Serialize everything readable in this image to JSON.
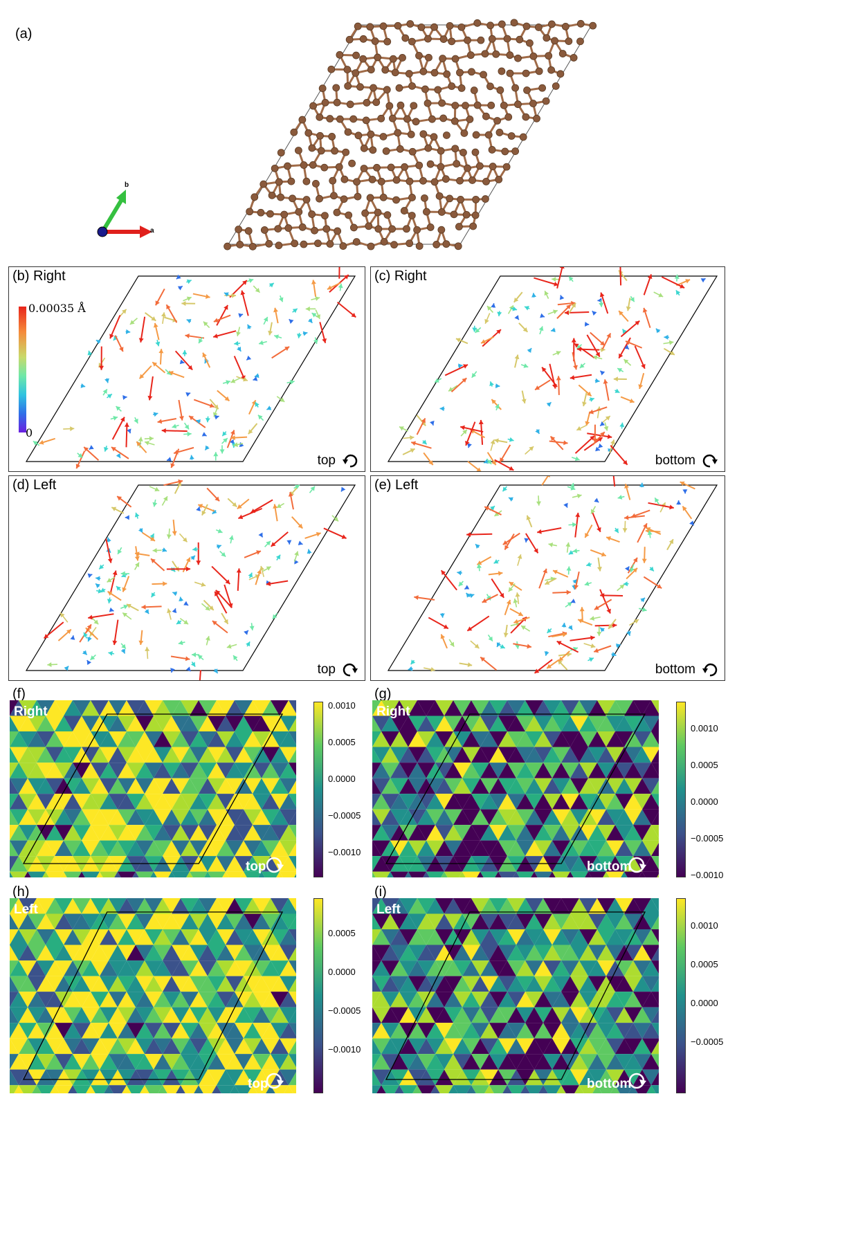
{
  "figure": {
    "panel_a": {
      "label": "(a)",
      "axis_a": "a",
      "axis_b": "b"
    },
    "colorbar_top": {
      "max_label": "0.00035 Å",
      "min_label": "0"
    },
    "panel_b": {
      "label": "(b) Right",
      "corner": "top",
      "rotation": "counter-clockwise"
    },
    "panel_c": {
      "label": "(c) Right",
      "corner": "bottom",
      "rotation": "clockwise"
    },
    "panel_d": {
      "label": "(d) Left",
      "corner": "top",
      "rotation": "clockwise"
    },
    "panel_e": {
      "label": "(e) Left",
      "corner": "bottom",
      "rotation": "counter-clockwise"
    },
    "panel_f": {
      "label": "(f)",
      "side": "Right",
      "corner": "top",
      "ticks": [
        "0.0010",
        "0.0005",
        "0.0000",
        "−0.0005",
        "−0.0010"
      ]
    },
    "panel_g": {
      "label": "(g)",
      "side": "Right",
      "corner": "bottom",
      "ticks": [
        "0.0010",
        "0.0005",
        "0.0000",
        "−0.0005",
        "−0.0010"
      ]
    },
    "panel_h": {
      "label": "(h)",
      "side": "Left",
      "corner": "top",
      "ticks": [
        "0.0005",
        "0.0000",
        "−0.0005",
        "−0.0010"
      ]
    },
    "panel_i": {
      "label": "(i)",
      "side": "Left",
      "corner": "bottom",
      "ticks": [
        "0.0010",
        "0.0005",
        "0.0000",
        "−0.0005"
      ]
    }
  },
  "colors": {
    "atom": "#8a5a3c",
    "bond": "#a06b48",
    "axis_a": "#e0201c",
    "axis_b": "#35c040",
    "origin": "#1a1a8c"
  },
  "icons": {
    "rotate_ccw": "rotate-ccw-icon",
    "rotate_cw": "rotate-cw-icon"
  }
}
